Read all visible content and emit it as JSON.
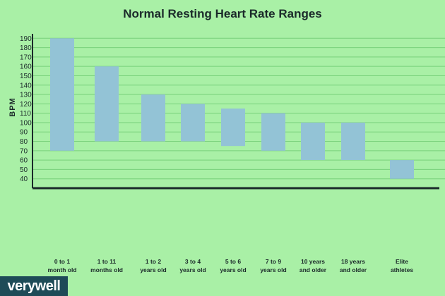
{
  "chart_data": {
    "type": "bar",
    "title": "Normal Resting Heart Rate Ranges",
    "ylabel": "BPM",
    "xlabel": "",
    "ylim": [
      30,
      200
    ],
    "yticks": [
      40,
      50,
      60,
      70,
      80,
      90,
      100,
      110,
      120,
      130,
      140,
      150,
      160,
      170,
      180,
      190
    ],
    "grid": true,
    "categories": [
      [
        "0 to 1",
        "month old"
      ],
      [
        "1 to 11",
        "months old"
      ],
      [
        "1 to 2",
        "years old"
      ],
      [
        "3 to 4",
        "years old"
      ],
      [
        "5 to 6",
        "years old"
      ],
      [
        "7 to 9",
        "years old"
      ],
      [
        "10 years",
        "and older"
      ],
      [
        "18 years",
        "and older"
      ],
      [
        "Elite",
        "athletes"
      ]
    ],
    "ranges": [
      {
        "low": 70,
        "high": 190
      },
      {
        "low": 80,
        "high": 160
      },
      {
        "low": 80,
        "high": 130
      },
      {
        "low": 80,
        "high": 120
      },
      {
        "low": 75,
        "high": 115
      },
      {
        "low": 70,
        "high": 110
      },
      {
        "low": 60,
        "high": 100
      },
      {
        "low": 60,
        "high": 100
      },
      {
        "low": 40,
        "high": 60
      }
    ],
    "colors": {
      "background": "#a9f0a6",
      "bar": "#93c3d6",
      "grid": "#78d07a",
      "axis": "#1b2a2a"
    }
  },
  "brand": {
    "logo_text": "verywell",
    "logo_color": "#1e4b57"
  }
}
